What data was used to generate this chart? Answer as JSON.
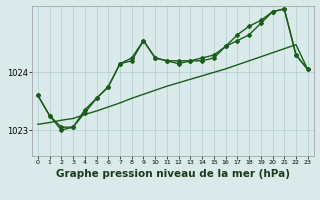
{
  "background_color": "#daeaea",
  "grid_color": "#b0d0d0",
  "line_color": "#1a5c1a",
  "xlabel": "Graphe pression niveau de la mer (hPa)",
  "xlabel_fontsize": 7.5,
  "ylim": [
    1022.55,
    1025.15
  ],
  "xlim": [
    -0.5,
    23.5
  ],
  "yticks": [
    1023,
    1024
  ],
  "xticks": [
    0,
    1,
    2,
    3,
    4,
    5,
    6,
    7,
    8,
    9,
    10,
    11,
    12,
    13,
    14,
    15,
    16,
    17,
    18,
    19,
    20,
    21,
    22,
    23
  ],
  "series": [
    {
      "x": [
        0,
        1,
        2,
        3,
        4,
        5,
        6,
        7,
        8,
        9,
        10,
        11,
        12,
        13,
        14,
        15,
        16,
        17,
        18,
        19,
        20,
        21,
        22,
        23
      ],
      "y": [
        1023.1,
        1023.13,
        1023.17,
        1023.2,
        1023.27,
        1023.33,
        1023.4,
        1023.47,
        1023.55,
        1023.62,
        1023.69,
        1023.76,
        1023.82,
        1023.88,
        1023.94,
        1024.0,
        1024.06,
        1024.13,
        1024.2,
        1024.27,
        1024.34,
        1024.41,
        1024.48,
        1024.05
      ]
    },
    {
      "x": [
        0,
        1,
        2,
        3,
        4,
        5,
        6,
        7,
        8,
        9,
        10,
        11,
        12,
        13,
        14,
        15,
        16,
        17,
        18,
        19,
        20,
        21,
        22,
        23
      ],
      "y": [
        1023.6,
        1023.25,
        1023.0,
        1023.05,
        1023.35,
        1023.55,
        1023.75,
        1024.15,
        1024.25,
        1024.55,
        1024.25,
        1024.2,
        1024.15,
        1024.2,
        1024.2,
        1024.25,
        1024.45,
        1024.55,
        1024.65,
        1024.85,
        1025.05,
        1025.1,
        1024.3,
        1024.05
      ]
    },
    {
      "x": [
        0,
        1,
        2,
        3,
        4,
        5,
        6,
        7,
        8,
        9,
        10,
        11,
        12,
        13,
        14,
        15,
        16,
        17,
        18,
        19,
        20,
        21,
        22,
        23
      ],
      "y": [
        1023.6,
        1023.25,
        1023.05,
        1023.05,
        1023.3,
        1023.55,
        1023.75,
        1024.15,
        1024.2,
        1024.55,
        1024.25,
        1024.2,
        1024.2,
        1024.2,
        1024.25,
        1024.3,
        1024.45,
        1024.65,
        1024.8,
        1024.9,
        1025.05,
        1025.1,
        1024.3,
        1024.05
      ]
    }
  ]
}
